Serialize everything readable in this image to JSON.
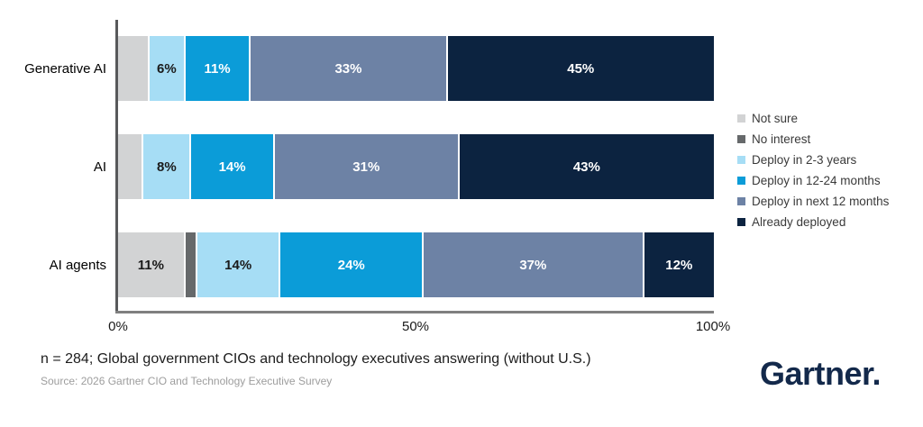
{
  "chart_data": {
    "type": "bar",
    "orientation": "horizontal",
    "stacked": true,
    "unit": "%",
    "title": "",
    "categories": [
      "Generative AI",
      "AI",
      "AI agents"
    ],
    "series": [
      {
        "name": "Not sure",
        "color": "#d2d3d4",
        "text_color": "#1a1a1a",
        "values": [
          5,
          4,
          11
        ],
        "labels": [
          "",
          "",
          "11%"
        ]
      },
      {
        "name": "No interest",
        "color": "#66696b",
        "text_color": "#ffffff",
        "values": [
          0,
          0,
          2
        ],
        "labels": [
          "",
          "",
          ""
        ]
      },
      {
        "name": "Deploy in 2-3 years",
        "color": "#a6ddf5",
        "text_color": "#1a1a1a",
        "values": [
          6,
          8,
          14
        ],
        "labels": [
          "6%",
          "8%",
          "14%"
        ]
      },
      {
        "name": "Deploy in 12-24 months",
        "color": "#0b9cd8",
        "text_color": "#ffffff",
        "values": [
          11,
          14,
          24
        ],
        "labels": [
          "11%",
          "14%",
          "24%"
        ]
      },
      {
        "name": "Deploy in next 12 months",
        "color": "#6d82a5",
        "text_color": "#ffffff",
        "values": [
          33,
          31,
          37
        ],
        "labels": [
          "33%",
          "31%",
          "37%"
        ]
      },
      {
        "name": "Already deployed",
        "color": "#0c2340",
        "text_color": "#ffffff",
        "values": [
          45,
          43,
          12
        ],
        "labels": [
          "45%",
          "43%",
          "12%"
        ]
      }
    ],
    "x_ticks": [
      {
        "label": "0%",
        "value": 0
      },
      {
        "label": "50%",
        "value": 50
      },
      {
        "label": "100%",
        "value": 100
      }
    ],
    "xlim": [
      0,
      100
    ],
    "grid": false,
    "legend_position": "right"
  },
  "colors": {
    "y_axis": "#58595b",
    "x_axis": "#7f7f7f",
    "logo_navy": "#13294b",
    "background": "#ffffff"
  },
  "footer": {
    "note": "n = 284; Global government CIOs and technology executives answering (without U.S.)",
    "source": "Source: 2026 Gartner CIO and Technology Executive Survey",
    "logo": "Gartner."
  }
}
